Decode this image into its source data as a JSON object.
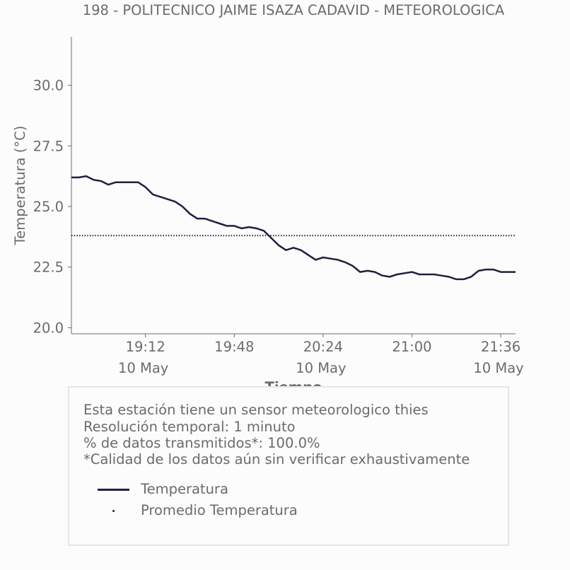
{
  "chart_data": {
    "type": "line",
    "title": "198 - POLITECNICO JAIME ISAZA CADAVID - METEOROLOGICA",
    "xlabel": "Tiempo",
    "ylabel": "Temperatura (°C)",
    "ylim": [
      19.75,
      32.0
    ],
    "y_ticks": [
      "20.0",
      "22.5",
      "25.0",
      "27.5",
      "30.0"
    ],
    "x_ticks": [
      {
        "time": "19:12",
        "date": "10 May"
      },
      {
        "time": "19:48",
        "date": ""
      },
      {
        "time": "20:24",
        "date": "10 May"
      },
      {
        "time": "21:00",
        "date": ""
      },
      {
        "time": "21:36",
        "date": "10 May"
      }
    ],
    "x_range": [
      "18:42",
      "21:42"
    ],
    "grid": false,
    "series": [
      {
        "name": "Temperatura",
        "style": "solid",
        "color": "#1f2041",
        "x": [
          "18:42",
          "18:45",
          "18:48",
          "18:51",
          "18:54",
          "18:57",
          "19:00",
          "19:03",
          "19:06",
          "19:09",
          "19:12",
          "19:15",
          "19:18",
          "19:21",
          "19:24",
          "19:27",
          "19:30",
          "19:33",
          "19:36",
          "19:39",
          "19:42",
          "19:45",
          "19:48",
          "19:51",
          "19:54",
          "19:57",
          "20:00",
          "20:03",
          "20:06",
          "20:09",
          "20:12",
          "20:15",
          "20:18",
          "20:21",
          "20:24",
          "20:27",
          "20:30",
          "20:33",
          "20:36",
          "20:39",
          "20:42",
          "20:45",
          "20:48",
          "20:51",
          "20:54",
          "20:57",
          "21:00",
          "21:03",
          "21:06",
          "21:09",
          "21:12",
          "21:15",
          "21:18",
          "21:21",
          "21:24",
          "21:27",
          "21:30",
          "21:33",
          "21:36",
          "21:39",
          "21:42"
        ],
        "values": [
          26.2,
          26.2,
          26.25,
          26.1,
          26.05,
          25.9,
          26.0,
          26.0,
          26.0,
          26.0,
          25.8,
          25.5,
          25.4,
          25.3,
          25.2,
          25.0,
          24.7,
          24.5,
          24.5,
          24.4,
          24.3,
          24.2,
          24.2,
          24.1,
          24.15,
          24.1,
          24.0,
          23.7,
          23.4,
          23.2,
          23.3,
          23.2,
          23.0,
          22.8,
          22.9,
          22.85,
          22.8,
          22.7,
          22.55,
          22.3,
          22.35,
          22.3,
          22.15,
          22.1,
          22.2,
          22.25,
          22.3,
          22.2,
          22.2,
          22.2,
          22.15,
          22.1,
          22.0,
          22.0,
          22.1,
          22.35,
          22.4,
          22.4,
          22.3,
          22.3,
          22.3
        ]
      },
      {
        "name": "Promedio Temperatura",
        "style": "dotted",
        "color": "#1f2041",
        "x": [
          "18:42",
          "21:42"
        ],
        "values": [
          23.8,
          23.8
        ]
      }
    ],
    "legend_position": "below"
  },
  "info": {
    "lines": [
      "Esta estación tiene un sensor meteorologico thies",
      "Resolución temporal: 1 minuto",
      "% de datos transmitidos*: 100.0%",
      "*Calidad de los datos aún sin verificar exhaustivamente"
    ],
    "legend": [
      {
        "label": "Temperatura"
      },
      {
        "label": "Promedio Temperatura"
      }
    ]
  }
}
